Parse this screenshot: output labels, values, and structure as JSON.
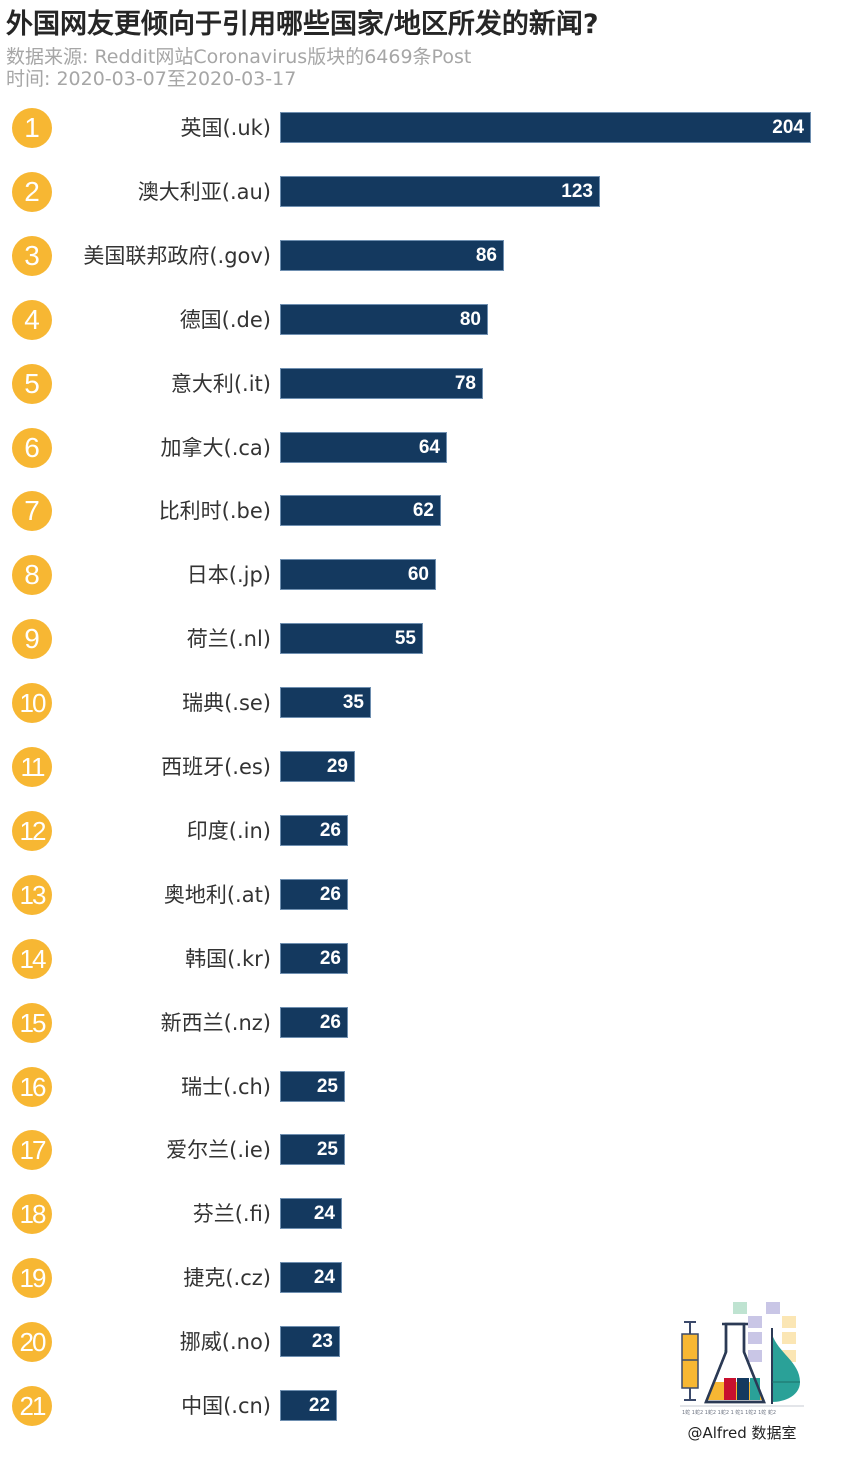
{
  "header": {
    "title": "外国网友更倾向于引用哪些国家/地区所发的新闻?",
    "source": "数据来源: Reddit网站Coronavirus版块的6469条Post",
    "period": "时间: 2020-03-07至2020-03-17"
  },
  "colors": {
    "bar": "#14395F",
    "badge": "#F7B733",
    "title": "#262626",
    "subtitle": "#A6A6A6"
  },
  "chart_data": {
    "type": "bar",
    "orientation": "horizontal",
    "title": "外国网友更倾向于引用哪些国家/地区所发的新闻?",
    "subtitle": [
      "数据来源: Reddit网站Coronavirus版块的6469条Post",
      "时间: 2020-03-07至2020-03-17"
    ],
    "xlabel": "",
    "ylabel": "",
    "grid": false,
    "legend": "none",
    "categories": [
      "英国(.uk)",
      "澳大利亚(.au)",
      "美国联邦政府(.gov)",
      "德国(.de)",
      "意大利(.it)",
      "加拿大(.ca)",
      "比利时(.be)",
      "日本(.jp)",
      "荷兰(.nl)",
      "瑞典(.se)",
      "西班牙(.es)",
      "印度(.in)",
      "奥地利(.at)",
      "韩国(.kr)",
      "新西兰(.nz)",
      "瑞士(.ch)",
      "爱尔兰(.ie)",
      "芬兰(.fi)",
      "捷克(.cz)",
      "挪威(.no)",
      "中国(.cn)"
    ],
    "ranks": [
      "1",
      "2",
      "3",
      "4",
      "5",
      "6",
      "7",
      "8",
      "9",
      "10",
      "11",
      "12",
      "13",
      "14",
      "15",
      "16",
      "17",
      "18",
      "19",
      "20",
      "21"
    ],
    "values": [
      204,
      123,
      86,
      80,
      78,
      64,
      62,
      60,
      55,
      35,
      29,
      26,
      26,
      26,
      26,
      25,
      25,
      24,
      24,
      23,
      22
    ],
    "xlim": [
      0,
      204
    ]
  },
  "rows": [
    {
      "rank": "1",
      "label": "英国(.uk)",
      "value": "204"
    },
    {
      "rank": "2",
      "label": "澳大利亚(.au)",
      "value": "123"
    },
    {
      "rank": "3",
      "label": "美国联邦政府(.gov)",
      "value": "86"
    },
    {
      "rank": "4",
      "label": "德国(.de)",
      "value": "80"
    },
    {
      "rank": "5",
      "label": "意大利(.it)",
      "value": "78"
    },
    {
      "rank": "6",
      "label": "加拿大(.ca)",
      "value": "64"
    },
    {
      "rank": "7",
      "label": "比利时(.be)",
      "value": "62"
    },
    {
      "rank": "8",
      "label": "日本(.jp)",
      "value": "60"
    },
    {
      "rank": "9",
      "label": "荷兰(.nl)",
      "value": "55"
    },
    {
      "rank": "10",
      "label": "瑞典(.se)",
      "value": "35"
    },
    {
      "rank": "11",
      "label": "西班牙(.es)",
      "value": "29"
    },
    {
      "rank": "12",
      "label": "印度(.in)",
      "value": "26"
    },
    {
      "rank": "13",
      "label": "奥地利(.at)",
      "value": "26"
    },
    {
      "rank": "14",
      "label": "韩国(.kr)",
      "value": "26"
    },
    {
      "rank": "15",
      "label": "新西兰(.nz)",
      "value": "26"
    },
    {
      "rank": "16",
      "label": "瑞士(.ch)",
      "value": "25"
    },
    {
      "rank": "17",
      "label": "爱尔兰(.ie)",
      "value": "25"
    },
    {
      "rank": "18",
      "label": "芬兰(.fi)",
      "value": "24"
    },
    {
      "rank": "19",
      "label": "捷克(.cz)",
      "value": "24"
    },
    {
      "rank": "20",
      "label": "挪威(.no)",
      "value": "23"
    },
    {
      "rank": "21",
      "label": "中国(.cn)",
      "value": "22"
    }
  ],
  "logo": {
    "icon": "lab-flask-chart-icon",
    "caption": "@Alfred 数据室"
  }
}
